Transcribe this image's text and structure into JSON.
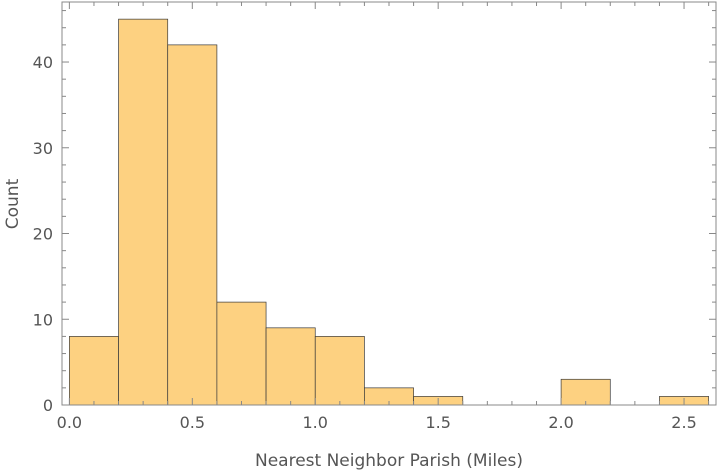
{
  "chart_data": {
    "type": "histogram",
    "xlabel": "Nearest Neighbor Parish (Miles)",
    "ylabel": "Count",
    "bin_width": 0.2,
    "bins": [
      {
        "start": 0.0,
        "end": 0.2,
        "count": 8
      },
      {
        "start": 0.2,
        "end": 0.4,
        "count": 45
      },
      {
        "start": 0.4,
        "end": 0.6,
        "count": 42
      },
      {
        "start": 0.6,
        "end": 0.8,
        "count": 12
      },
      {
        "start": 0.8,
        "end": 1.0,
        "count": 9
      },
      {
        "start": 1.0,
        "end": 1.2,
        "count": 8
      },
      {
        "start": 1.2,
        "end": 1.4,
        "count": 2
      },
      {
        "start": 1.4,
        "end": 1.6,
        "count": 1
      },
      {
        "start": 2.0,
        "end": 2.2,
        "count": 3
      },
      {
        "start": 2.4,
        "end": 2.6,
        "count": 1
      }
    ],
    "xlim": [
      -0.03,
      2.63
    ],
    "ylim": [
      0,
      47
    ],
    "x_ticks_major": [
      0.0,
      0.5,
      1.0,
      1.5,
      2.0,
      2.5
    ],
    "x_tick_labels": [
      "0.0",
      "0.5",
      "1.0",
      "1.5",
      "2.0",
      "2.5"
    ],
    "y_ticks_major": [
      0,
      10,
      20,
      30,
      40
    ],
    "y_tick_labels": [
      "0",
      "10",
      "20",
      "30",
      "40"
    ],
    "grid": false,
    "colors": {
      "bar_fill": "#fdd181",
      "bar_stroke": "#3a3a3a",
      "frame": "#888888",
      "text": "#555555"
    }
  }
}
